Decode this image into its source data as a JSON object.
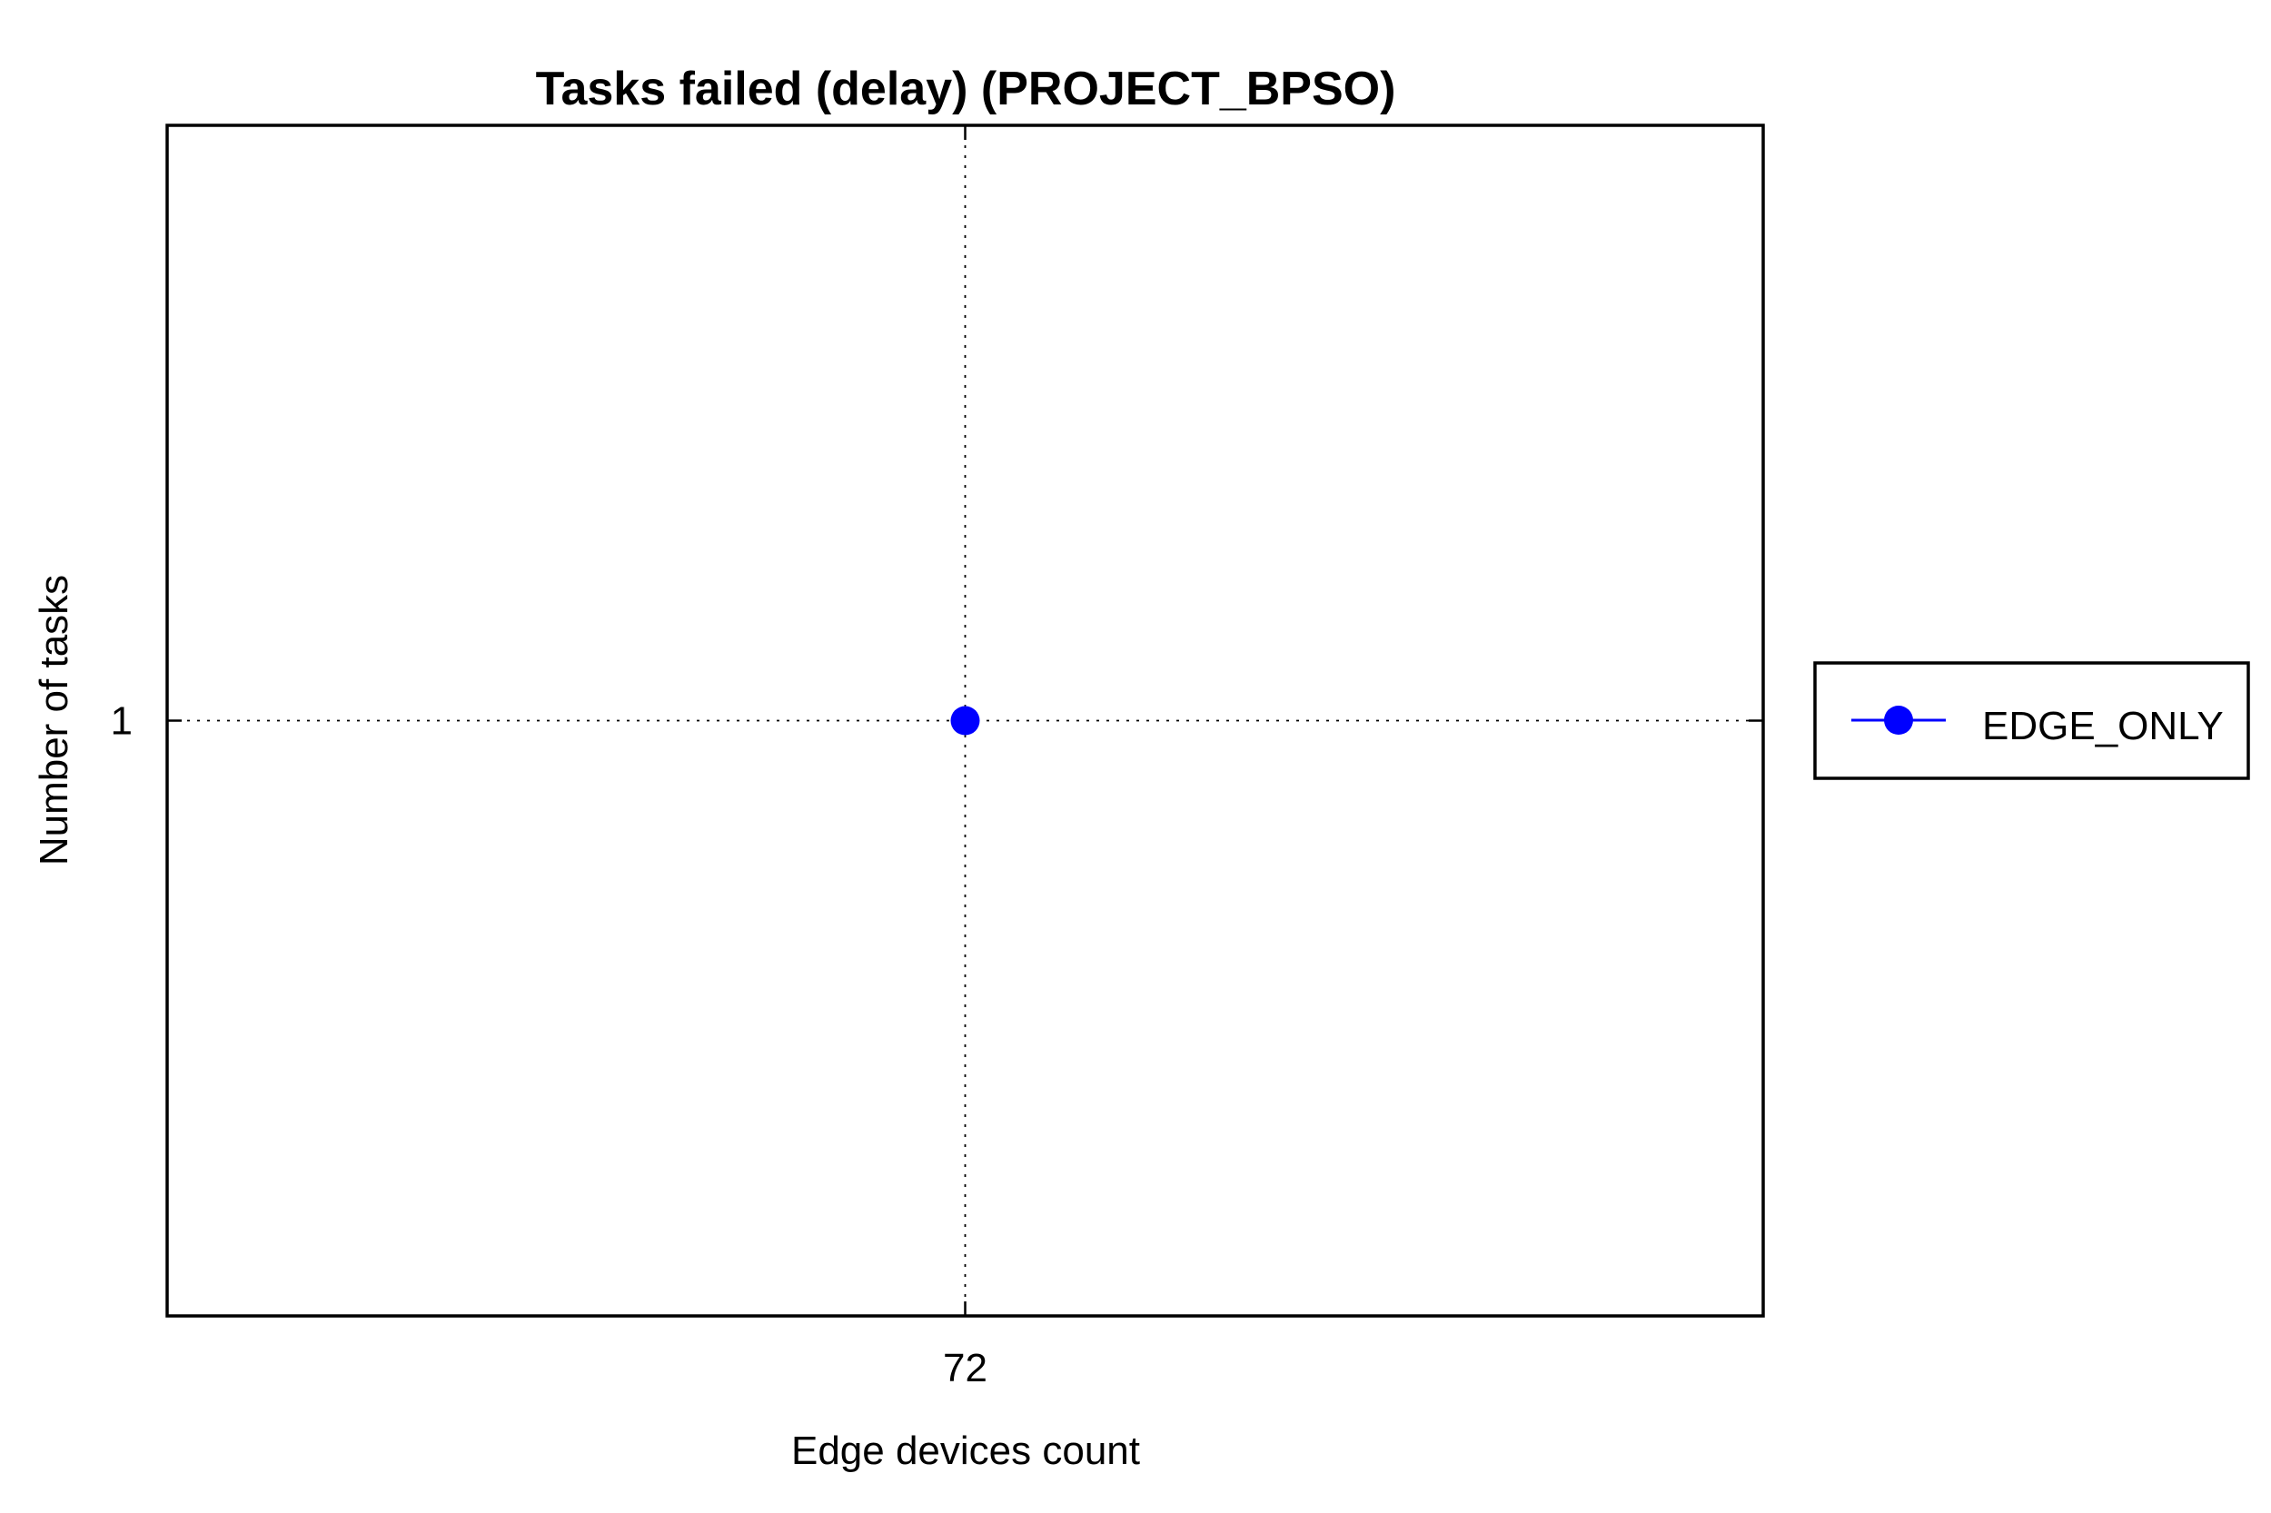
{
  "chart_data": {
    "type": "line",
    "title": "Tasks failed (delay) (PROJECT_BPSO)",
    "xlabel": "Edge devices count",
    "ylabel": "Number of tasks",
    "x": [
      72
    ],
    "x_ticks": [
      "72"
    ],
    "y_ticks": [
      "1"
    ],
    "grid": true,
    "legend_position": "outside-right",
    "series": [
      {
        "name": "EDGE_ONLY",
        "color": "#0000ff",
        "marker": "circle",
        "x": [
          72
        ],
        "y": [
          1
        ]
      }
    ]
  }
}
